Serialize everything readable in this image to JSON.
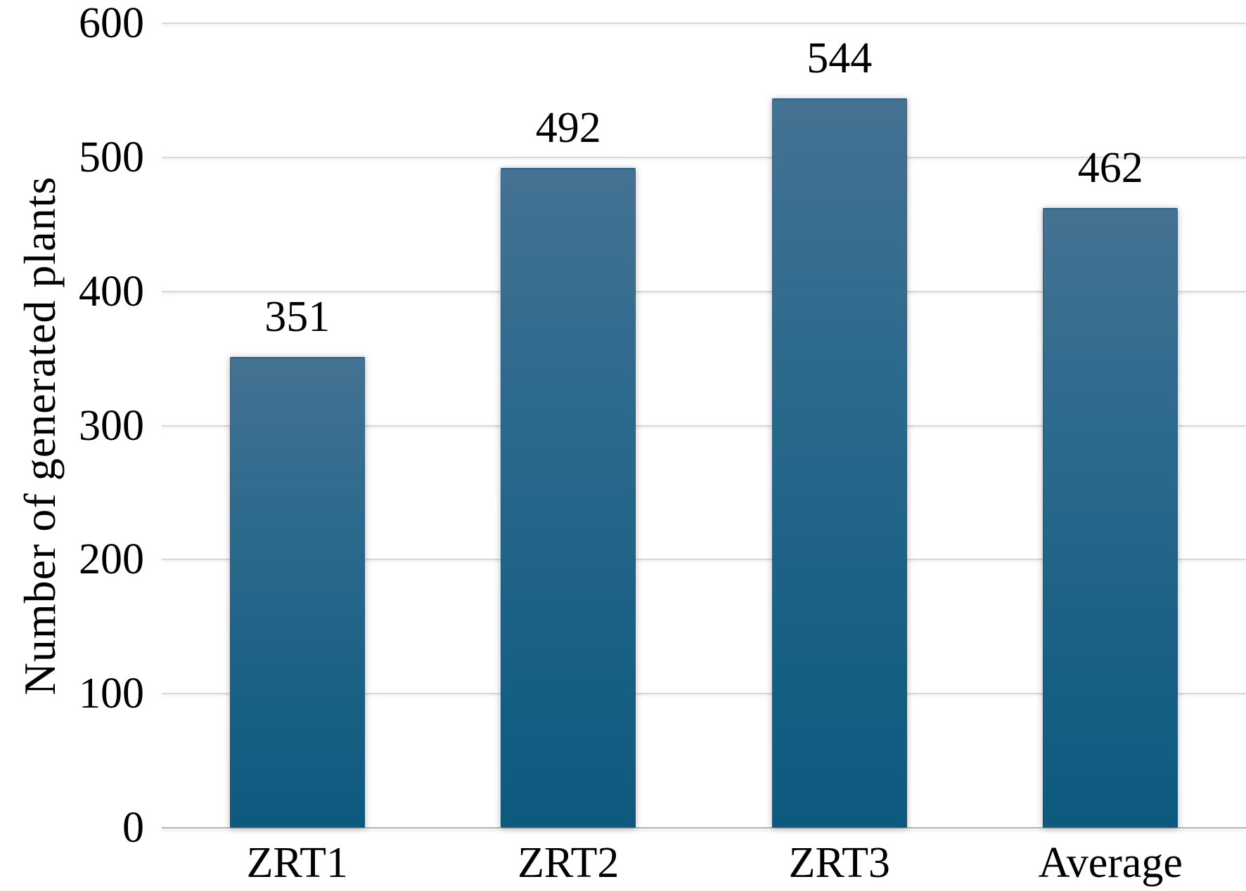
{
  "chart_data": {
    "type": "bar",
    "title": "",
    "xlabel": "",
    "ylabel": "Number of generated plants",
    "categories": [
      "ZRT1",
      "ZRT2",
      "ZRT3",
      "Average"
    ],
    "values": [
      351,
      492,
      544,
      462
    ],
    "value_labels": [
      "351",
      "492",
      "544",
      "462"
    ],
    "ylim": [
      0,
      600
    ],
    "yticks": [
      0,
      100,
      200,
      300,
      400,
      500,
      600
    ],
    "grid": true,
    "legend_position": "none",
    "colors": {
      "bar_gradient_top": "#447293",
      "bar_gradient_bottom": "#0d5a7e",
      "bar_edge": "#2c6183",
      "gridline": "#d9d9d9",
      "baseline": "#b5b5b5",
      "text": "#000000",
      "background": "#ffffff"
    }
  }
}
